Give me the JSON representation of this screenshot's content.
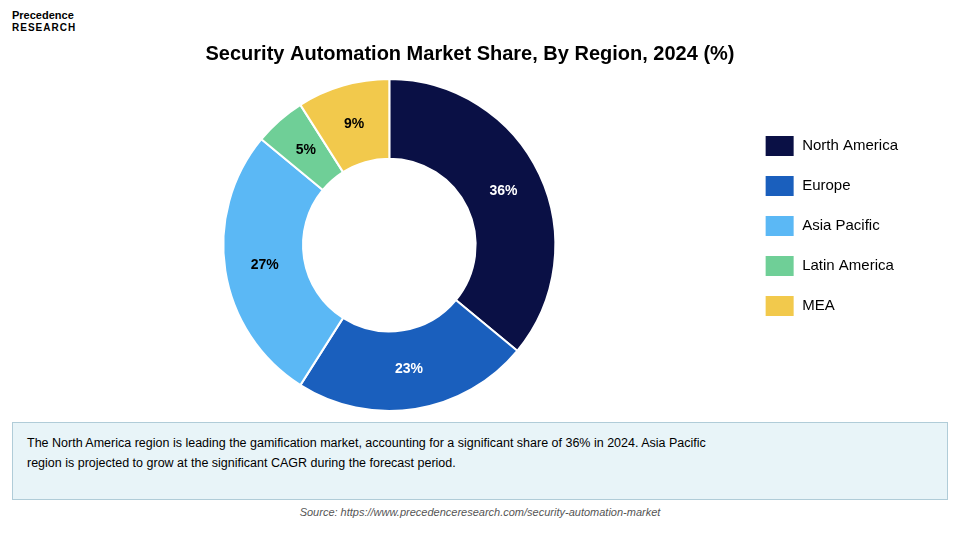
{
  "chart_data": {
    "type": "doughnut",
    "title": "Security Automation Market Share, By Region, 2024 (%)",
    "categories": [
      "North America",
      "Europe",
      "Asia Pacific",
      "Latin America",
      "MEA"
    ],
    "values": [
      36,
      23,
      27,
      5,
      9
    ],
    "value_labels": [
      "36%",
      "23%",
      "27%",
      "5%",
      "9%"
    ],
    "colors": [
      "#0a1045",
      "#1a5fbd",
      "#5bb8f5",
      "#6fcf97",
      "#f2c94c"
    ],
    "data_labels": true,
    "legend": "right",
    "annotations": [
      "Precedence",
      "RESEARCH",
      "The North America region is leading the gamification market, accounting for a significant share of 36% in 2024. Asia Pacific\nregion is projected to grow at the significant CAGR during the forecast period.",
      "Source: https://www.precedenceresearch.com/security-automation-market"
    ]
  }
}
